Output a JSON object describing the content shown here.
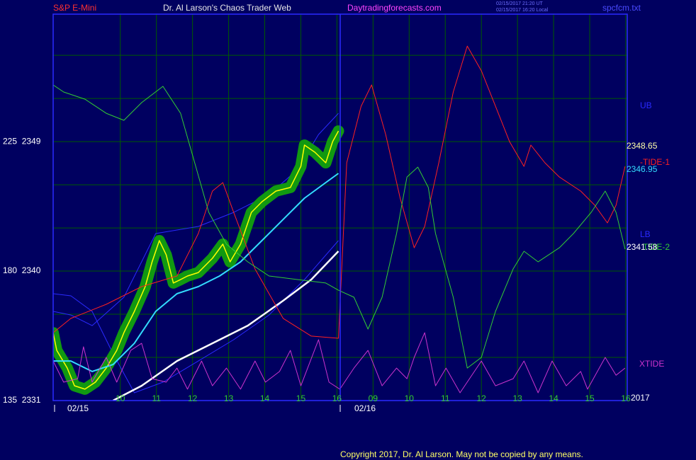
{
  "chart_data": {
    "type": "line",
    "title": "Dr. Al Larson's Chaos Trader Web",
    "instrument": "S&P E-Mini",
    "site": "Daytradingforecasts.com",
    "timestamps": [
      "02/15/2017 21:20 UT",
      "02/15/2017 16:20 Local"
    ],
    "file": "spcfcm.txt",
    "copyright": "Copyright 2017, Dr. Al Larson. May not be copied by any means.",
    "year": "2017",
    "date_labels": [
      "02/15",
      "02/16"
    ],
    "xlim": [
      -0.86,
      15.04
    ],
    "ylim": [
      2331,
      2357.86
    ],
    "xticks": [
      {
        "value": 1,
        "label": "10"
      },
      {
        "value": 2,
        "label": "11"
      },
      {
        "value": 3,
        "label": "12"
      },
      {
        "value": 4,
        "label": "13"
      },
      {
        "value": 5,
        "label": "14"
      },
      {
        "value": 6,
        "label": "15"
      },
      {
        "value": 7,
        "label": "16"
      },
      {
        "value": 8,
        "label": "09"
      },
      {
        "value": 9,
        "label": "10"
      },
      {
        "value": 10,
        "label": "11"
      },
      {
        "value": 11,
        "label": "12"
      },
      {
        "value": 12,
        "label": "13"
      },
      {
        "value": 13,
        "label": "14"
      },
      {
        "value": 14,
        "label": "15"
      },
      {
        "value": 15,
        "label": "16"
      }
    ],
    "yticks": [
      {
        "value": 2331,
        "label": "135  2331"
      },
      {
        "value": 2340,
        "label": "180  2340"
      },
      {
        "value": 2349,
        "label": "225  2349"
      }
    ],
    "ygrid": [
      2334,
      2337,
      2343,
      2346,
      2352,
      2355
    ],
    "grid": true,
    "grid_color": "#005a00",
    "right_values": [
      2348.65,
      2346.95,
      2341.58
    ],
    "right_value_colors": [
      "#ffffaa",
      "#33ddff",
      "#ffffff"
    ],
    "series": [
      {
        "name": "UB",
        "color": "#2a2aff",
        "width": 1,
        "x": [
          -0.86,
          -0.37,
          0.22,
          1.1,
          1.98,
          3.16,
          4.14,
          5.12,
          5.9,
          6.49,
          7.04
        ],
        "values": [
          2337.2,
          2336.95,
          2336.21,
          2338.18,
          2342.61,
          2343.1,
          2344.08,
          2345.31,
          2347.04,
          2349.49,
          2350.97
        ]
      },
      {
        "name": "LB",
        "color": "#2a2aff",
        "width": 1,
        "x": [
          -0.86,
          -0.37,
          0.22,
          0.8,
          1.39,
          2.18,
          3.16,
          4.14,
          5.12,
          6.1,
          7.04
        ],
        "values": [
          2338.43,
          2338.28,
          2337.2,
          2334.25,
          2331.54,
          2332.28,
          2333.75,
          2335.23,
          2336.95,
          2339.41,
          2342.12
        ]
      },
      {
        "color": "#ffff00",
        "width": 1.5,
        "glow": "#119911",
        "x": [
          -0.86,
          -0.76,
          -0.47,
          -0.27,
          0.02,
          0.31,
          0.61,
          0.9,
          1.1,
          1.39,
          1.69,
          1.88,
          2.08,
          2.27,
          2.47,
          2.67,
          2.86,
          3.16,
          3.55,
          3.84,
          4.04,
          4.33,
          4.63,
          4.92,
          5.31,
          5.71,
          6.0,
          6.1,
          6.39,
          6.69,
          6.88,
          7.04
        ],
        "values": [
          2335.72,
          2334.49,
          2333.26,
          2332.03,
          2331.79,
          2332.28,
          2333.26,
          2334.49,
          2335.72,
          2337.2,
          2338.92,
          2340.64,
          2342.12,
          2341.13,
          2339.17,
          2339.41,
          2339.66,
          2339.9,
          2340.89,
          2341.87,
          2340.64,
          2341.87,
          2344.08,
          2344.82,
          2345.56,
          2345.81,
          2347.28,
          2348.76,
          2348.26,
          2347.53,
          2349.0,
          2349.74
        ]
      },
      {
        "color": "#33ddff",
        "width": 2,
        "x": [
          -0.86,
          -0.37,
          0.22,
          0.8,
          1.39,
          1.98,
          2.57,
          3.16,
          3.75,
          4.33,
          4.92,
          5.51,
          6.1,
          6.69,
          7.04
        ],
        "values": [
          2333.75,
          2333.75,
          2333.02,
          2333.51,
          2334.98,
          2337.2,
          2338.43,
          2338.92,
          2339.66,
          2340.64,
          2342.12,
          2343.59,
          2345.07,
          2346.15,
          2346.79
        ]
      },
      {
        "color": "#ffffff",
        "width": 2.5,
        "x": [
          0.8,
          1.59,
          2.57,
          3.55,
          4.53,
          5.51,
          6.29,
          7.04
        ],
        "values": [
          2331.0,
          2332.03,
          2333.75,
          2334.98,
          2336.21,
          2337.94,
          2339.41,
          2341.38
        ]
      },
      {
        "name": "-TIDE-1",
        "color": "#ff2020",
        "width": 1,
        "x": [
          -0.86,
          -0.37,
          0.61,
          1.59,
          2.57,
          3.16,
          3.55,
          3.84,
          4.14,
          4.73,
          5.51,
          6.29,
          7.04,
          7.27,
          7.67,
          7.96,
          8.35,
          8.75,
          9.14,
          9.43,
          9.82,
          10.22,
          10.61,
          11.0,
          11.39,
          11.78,
          12.18,
          12.37,
          12.76,
          13.16,
          13.75,
          14.14,
          14.49,
          14.73,
          14.98
        ],
        "values": [
          2335.72,
          2336.71,
          2337.69,
          2338.92,
          2339.66,
          2342.61,
          2345.56,
          2346.15,
          2344.08,
          2340.15,
          2336.71,
          2335.48,
          2335.33,
          2347.53,
          2351.46,
          2352.94,
          2349.49,
          2345.07,
          2341.62,
          2343.1,
          2347.53,
          2352.45,
          2355.64,
          2353.92,
          2351.46,
          2349.0,
          2347.28,
          2348.76,
          2347.53,
          2346.54,
          2345.56,
          2344.58,
          2343.35,
          2344.58,
          2347.28
        ]
      },
      {
        "name": "TIDE-2",
        "color": "#33cc33",
        "width": 1,
        "x": [
          -0.86,
          -0.57,
          0.02,
          0.61,
          1.1,
          1.59,
          2.18,
          2.67,
          3.06,
          3.45,
          3.94,
          4.53,
          5.12,
          5.9,
          6.69,
          7.04,
          7.47,
          7.86,
          8.25,
          8.65,
          8.94,
          9.24,
          9.53,
          9.73,
          10.22,
          10.61,
          11.0,
          11.39,
          11.88,
          12.18,
          12.57,
          13.16,
          13.55,
          14.04,
          14.43,
          14.73,
          14.98
        ],
        "values": [
          2352.94,
          2352.45,
          2351.95,
          2350.97,
          2350.48,
          2351.71,
          2352.84,
          2350.97,
          2347.53,
          2344.08,
          2341.87,
          2340.64,
          2339.66,
          2339.41,
          2339.17,
          2338.67,
          2338.18,
          2335.97,
          2338.18,
          2342.61,
          2346.54,
          2347.23,
          2345.81,
          2342.61,
          2338.18,
          2333.26,
          2334.0,
          2337.2,
          2340.15,
          2341.38,
          2340.64,
          2341.62,
          2342.61,
          2344.08,
          2345.56,
          2344.08,
          2341.53
        ]
      },
      {
        "name": "XTIDE",
        "color": "#cc33cc",
        "width": 1,
        "x": [
          -0.86,
          -0.57,
          -0.18,
          -0.02,
          0.22,
          0.61,
          0.9,
          1.29,
          1.59,
          1.88,
          2.27,
          2.57,
          2.86,
          3.25,
          3.55,
          3.94,
          4.33,
          4.73,
          5.02,
          5.41,
          5.71,
          6.0,
          6.49,
          6.78,
          7.08,
          7.47,
          7.86,
          8.25,
          8.65,
          8.94,
          9.14,
          9.43,
          9.73,
          10.02,
          10.41,
          11.0,
          11.39,
          11.88,
          12.18,
          12.57,
          12.96,
          13.35,
          13.75,
          13.94,
          14.43,
          14.73,
          14.98
        ],
        "values": [
          2333.75,
          2332.28,
          2332.52,
          2334.74,
          2332.28,
          2334.0,
          2332.28,
          2334.49,
          2334.98,
          2332.52,
          2332.28,
          2333.26,
          2331.79,
          2333.75,
          2332.03,
          2333.26,
          2331.79,
          2333.75,
          2332.28,
          2333.02,
          2334.49,
          2332.03,
          2335.23,
          2332.28,
          2331.79,
          2333.26,
          2334.49,
          2332.03,
          2333.26,
          2332.52,
          2334.0,
          2335.72,
          2332.03,
          2333.26,
          2331.54,
          2333.75,
          2332.03,
          2332.52,
          2333.75,
          2331.54,
          2333.75,
          2332.03,
          2333.02,
          2331.79,
          2334.0,
          2332.76,
          2333.26
        ]
      }
    ]
  }
}
